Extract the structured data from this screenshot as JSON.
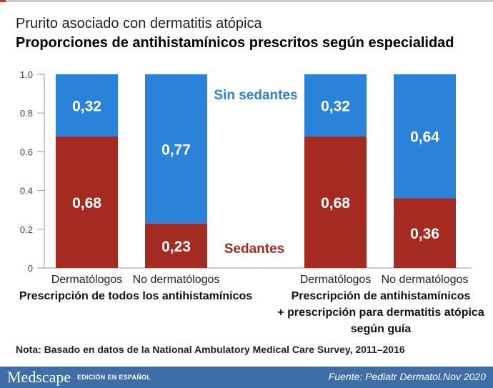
{
  "header": {
    "title": "Prurito asociado con dermatitis atópica",
    "subtitle": "Proporciones de antihistamínicos prescritos según especialidad"
  },
  "note": "Nota: Basado en datos de la National Ambulatory Medical Care Survey, 2011–2016",
  "footer": {
    "brand": "Medscape",
    "edition": "EDICIÓN EN ESPAÑOL",
    "source": "Fuente: Pediatr Dermatol.Nov 2020"
  },
  "colors": {
    "sedantes": "#a52a22",
    "sin_sedantes": "#2b82d9",
    "footer": "#3d6fa6"
  },
  "chart_data": {
    "type": "bar",
    "stacked": true,
    "ylim": [
      0,
      1.0
    ],
    "yticks": [
      "0",
      "0.2",
      "0.4",
      "0.6",
      "0.8",
      "1.0"
    ],
    "categories": [
      "Dermatólogos",
      "No dermatólogos",
      "Dermatólogos",
      "No dermatólogos"
    ],
    "groups": [
      {
        "label": [
          "Prescripción de todos los antihistamínicos"
        ]
      },
      {
        "label": [
          "Prescripción de antihistamínicos",
          "+ prescripción para dermatitis atópica",
          "según guía"
        ]
      }
    ],
    "series": [
      {
        "name": "Sedantes",
        "values": [
          0.68,
          0.23,
          0.68,
          0.36
        ],
        "labels": [
          "0,68",
          "0,23",
          "0,68",
          "0,36"
        ]
      },
      {
        "name": "Sin sedantes",
        "values": [
          0.32,
          0.77,
          0.32,
          0.64
        ],
        "labels": [
          "0,32",
          "0,77",
          "0,32",
          "0,64"
        ]
      }
    ]
  }
}
